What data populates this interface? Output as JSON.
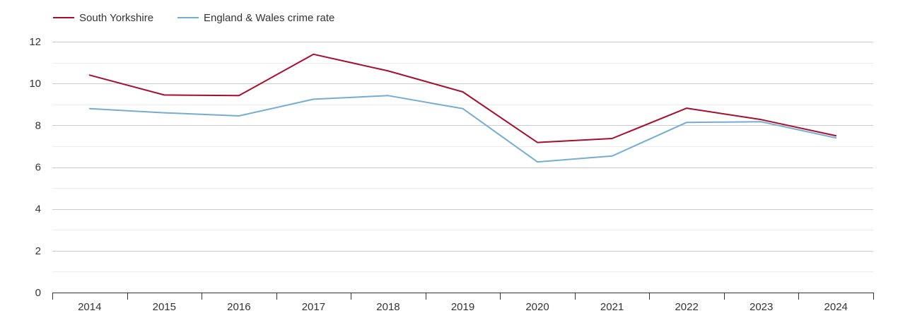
{
  "chart_data": {
    "type": "line",
    "categories": [
      "2014",
      "2015",
      "2016",
      "2017",
      "2018",
      "2019",
      "2020",
      "2021",
      "2022",
      "2023",
      "2024"
    ],
    "series": [
      {
        "name": "South Yorkshire",
        "color": "#a50f2d",
        "values": [
          10.4,
          9.45,
          9.42,
          11.4,
          10.6,
          9.6,
          7.18,
          7.37,
          8.82,
          8.27,
          7.5
        ]
      },
      {
        "name": "England & Wales crime rate",
        "color": "#74add1",
        "values": [
          8.8,
          8.6,
          8.45,
          9.25,
          9.42,
          8.8,
          6.25,
          6.53,
          8.14,
          8.17,
          7.4
        ]
      }
    ],
    "yticks": [
      "0",
      "2",
      "4",
      "6",
      "8",
      "10",
      "12"
    ],
    "ylim": [
      0,
      12
    ],
    "minor_grid": true,
    "legend_position": "top-left",
    "title": "",
    "xlabel": "",
    "ylabel": ""
  }
}
